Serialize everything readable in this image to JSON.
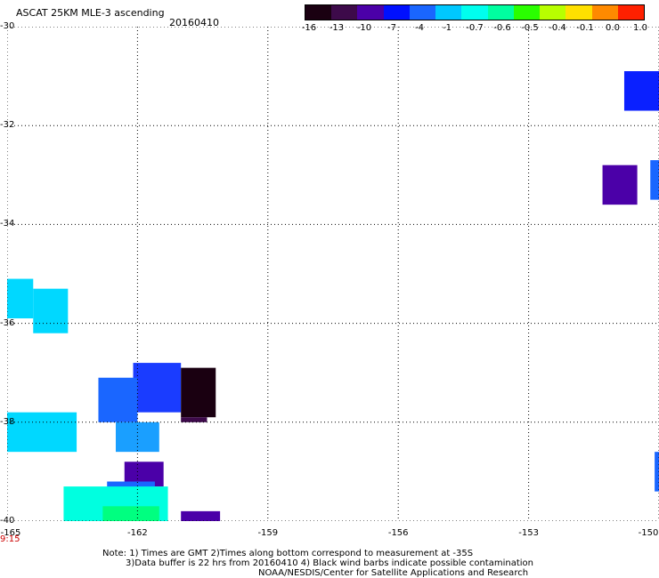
{
  "header": {
    "title": "ASCAT 25KM MLE-3 ascending",
    "date": "20160410"
  },
  "colorbar": {
    "labels": [
      "-16",
      "-13",
      "-10",
      "-7",
      "-4",
      "-1",
      "-0.7",
      "-0.6",
      "-0.5",
      "-0.4",
      "-0.1",
      "0.0",
      "1.0"
    ],
    "colors": [
      "#1a0011",
      "#3d0a4a",
      "#4b00a8",
      "#0010ff",
      "#1a66ff",
      "#00c8ff",
      "#00ffee",
      "#00ffa0",
      "#2aff00",
      "#b8ff00",
      "#ffe000",
      "#ff8a00",
      "#ff2000"
    ]
  },
  "axes": {
    "y_labels": [
      "-30",
      "-32",
      "-34",
      "-36",
      "-38",
      "-40"
    ],
    "x_labels": [
      "-165",
      "-162",
      "-159",
      "-156",
      "-153",
      "-150"
    ],
    "x_range": [
      -165,
      -150
    ],
    "y_range": [
      -40,
      -30
    ],
    "grid": "dotted"
  },
  "time_label": "9:15",
  "notes": {
    "line1": "Note: 1) Times are GMT 2)Times along bottom correspond to measurement at -35S",
    "line2": "3)Data buffer is 22 hrs from 20160410 4) Black wind barbs indicate possible contamination",
    "line3": "NOAA/NESDIS/Center for Satellite Applications and Research"
  },
  "chart_data": {
    "type": "heatmap",
    "title": "ASCAT 25KM MLE-3 ascending",
    "xlim": [
      -165,
      -150
    ],
    "ylim": [
      -40,
      -30
    ],
    "cells": [
      {
        "lon0": -150.8,
        "lon1": -150.0,
        "lat0": -30.9,
        "lat1": -31.7,
        "color": "#0a20ff"
      },
      {
        "lon0": -151.3,
        "lon1": -150.5,
        "lat0": -32.8,
        "lat1": -33.6,
        "color": "#4b00a8"
      },
      {
        "lon0": -150.2,
        "lon1": -150.0,
        "lat0": -32.7,
        "lat1": -33.5,
        "color": "#1a66ff"
      },
      {
        "lon0": -165.0,
        "lon1": -164.4,
        "lat0": -35.1,
        "lat1": -35.9,
        "color": "#00d8ff"
      },
      {
        "lon0": -164.4,
        "lon1": -163.6,
        "lat0": -35.3,
        "lat1": -36.2,
        "color": "#00d8ff"
      },
      {
        "lon0": -165.0,
        "lon1": -163.4,
        "lat0": -37.8,
        "lat1": -38.6,
        "color": "#00d8ff"
      },
      {
        "lon0": -162.1,
        "lon1": -161.0,
        "lat0": -36.8,
        "lat1": -37.8,
        "color": "#1a3cff"
      },
      {
        "lon0": -162.9,
        "lon1": -162.0,
        "lat0": -37.1,
        "lat1": -38.0,
        "color": "#1a66ff"
      },
      {
        "lon0": -162.5,
        "lon1": -161.5,
        "lat0": -38.0,
        "lat1": -38.6,
        "color": "#1a9fff"
      },
      {
        "lon0": -161.0,
        "lon1": -160.2,
        "lat0": -36.9,
        "lat1": -37.9,
        "color": "#1a0011"
      },
      {
        "lon0": -161.0,
        "lon1": -160.4,
        "lat0": -37.9,
        "lat1": -38.0,
        "color": "#3d0a4a"
      },
      {
        "lon0": -162.3,
        "lon1": -161.4,
        "lat0": -38.8,
        "lat1": -39.3,
        "color": "#4b00a8"
      },
      {
        "lon0": -162.7,
        "lon1": -161.6,
        "lat0": -39.2,
        "lat1": -39.6,
        "color": "#1a66ff"
      },
      {
        "lon0": -163.7,
        "lon1": -161.3,
        "lat0": -39.3,
        "lat1": -40.0,
        "color": "#00ffe0"
      },
      {
        "lon0": -162.8,
        "lon1": -161.5,
        "lat0": -39.7,
        "lat1": -40.0,
        "color": "#00ff80"
      },
      {
        "lon0": -161.0,
        "lon1": -160.1,
        "lat0": -39.8,
        "lat1": -40.0,
        "color": "#4b00a8"
      },
      {
        "lon0": -150.1,
        "lon1": -150.0,
        "lat0": -38.6,
        "lat1": -39.4,
        "color": "#1a66ff"
      }
    ]
  }
}
